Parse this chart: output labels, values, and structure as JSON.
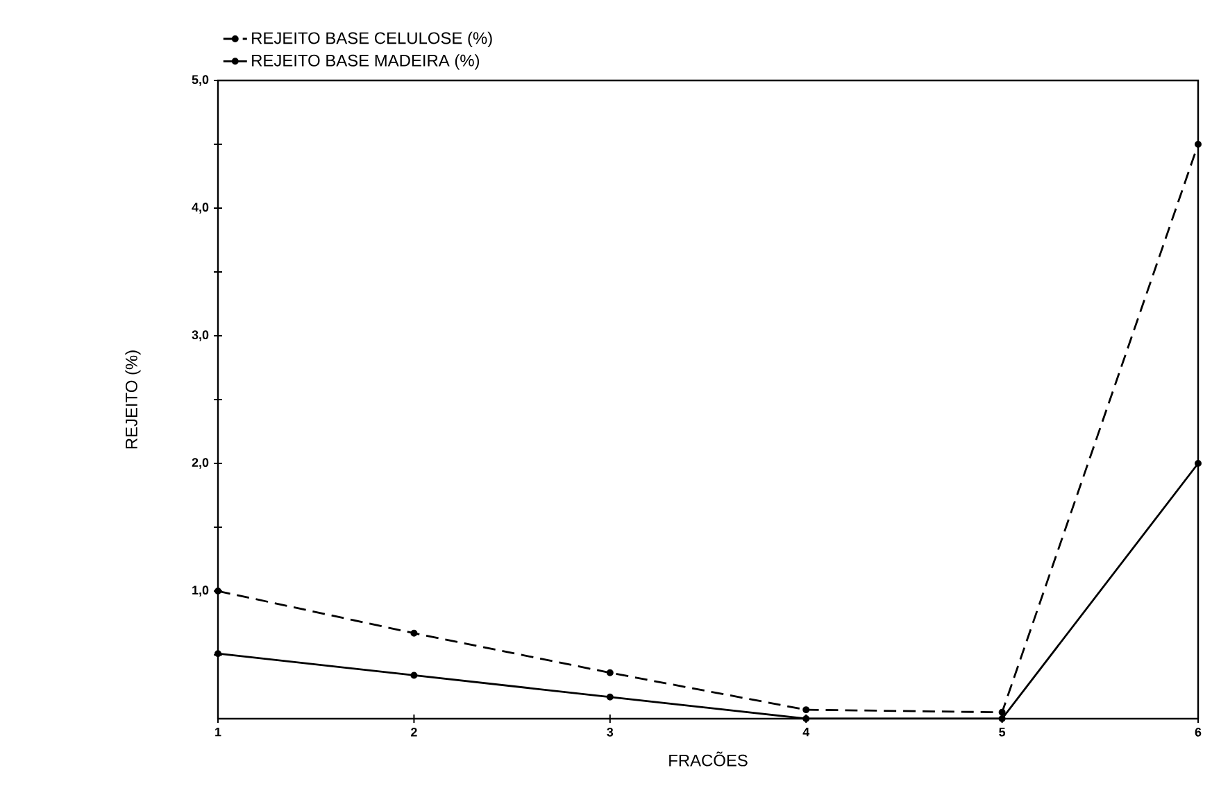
{
  "chart_data": {
    "type": "line",
    "xlabel": "FRACÕES",
    "ylabel": "REJEITO (%)",
    "x": [
      1,
      2,
      3,
      4,
      5,
      6
    ],
    "series": [
      {
        "name": "REJEITO BASE CELULOSE (%)",
        "color": "#000000",
        "line_style": "dashed",
        "values": [
          1.0,
          0.67,
          0.36,
          0.07,
          0.05,
          4.5
        ]
      },
      {
        "name": "REJEITO BASE MADEIRA (%)",
        "color": "#000000",
        "line_style": "solid",
        "values": [
          0.51,
          0.34,
          0.17,
          0.0,
          0.0,
          2.0
        ]
      }
    ],
    "xlim": [
      1,
      6
    ],
    "ylim": [
      0,
      5
    ],
    "xticks": [
      1,
      2,
      3,
      4,
      5,
      6
    ],
    "yticks": [
      {
        "value": 0.5,
        "label": null
      },
      {
        "value": 1,
        "label": "1,0"
      },
      {
        "value": 1.5,
        "label": null
      },
      {
        "value": 2,
        "label": "2,0"
      },
      {
        "value": 2.5,
        "label": null
      },
      {
        "value": 3,
        "label": "3,0"
      },
      {
        "value": 3.5,
        "label": null
      },
      {
        "value": 4,
        "label": "4,0"
      },
      {
        "value": 4.5,
        "label": null
      },
      {
        "value": 5,
        "label": "5,0"
      }
    ],
    "marker": "circle",
    "legend": "top",
    "grid": false
  }
}
